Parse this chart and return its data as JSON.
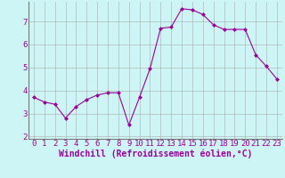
{
  "x": [
    0,
    1,
    2,
    3,
    4,
    5,
    6,
    7,
    8,
    9,
    10,
    11,
    12,
    13,
    14,
    15,
    16,
    17,
    18,
    19,
    20,
    21,
    22,
    23
  ],
  "y": [
    3.7,
    3.5,
    3.4,
    2.8,
    3.3,
    3.6,
    3.8,
    3.9,
    3.9,
    2.5,
    3.7,
    4.95,
    6.7,
    6.75,
    7.55,
    7.5,
    7.3,
    6.85,
    6.65,
    6.65,
    6.65,
    5.55,
    5.05,
    4.5
  ],
  "line_color": "#990099",
  "marker": "D",
  "markersize": 2,
  "linewidth": 0.8,
  "bg_color": "#cef5f5",
  "grid_color": "#aaaaaa",
  "xlabel": "Windchill (Refroidissement éolien,°C)",
  "xlim": [
    -0.5,
    23.5
  ],
  "ylim": [
    1.9,
    7.85
  ],
  "yticks": [
    2,
    3,
    4,
    5,
    6,
    7
  ],
  "xticks": [
    0,
    1,
    2,
    3,
    4,
    5,
    6,
    7,
    8,
    9,
    10,
    11,
    12,
    13,
    14,
    15,
    16,
    17,
    18,
    19,
    20,
    21,
    22,
    23
  ],
  "xlabel_fontsize": 7,
  "tick_fontsize": 6.5,
  "label_color": "#990099",
  "tick_color": "#990099",
  "spine_color": "#777777"
}
